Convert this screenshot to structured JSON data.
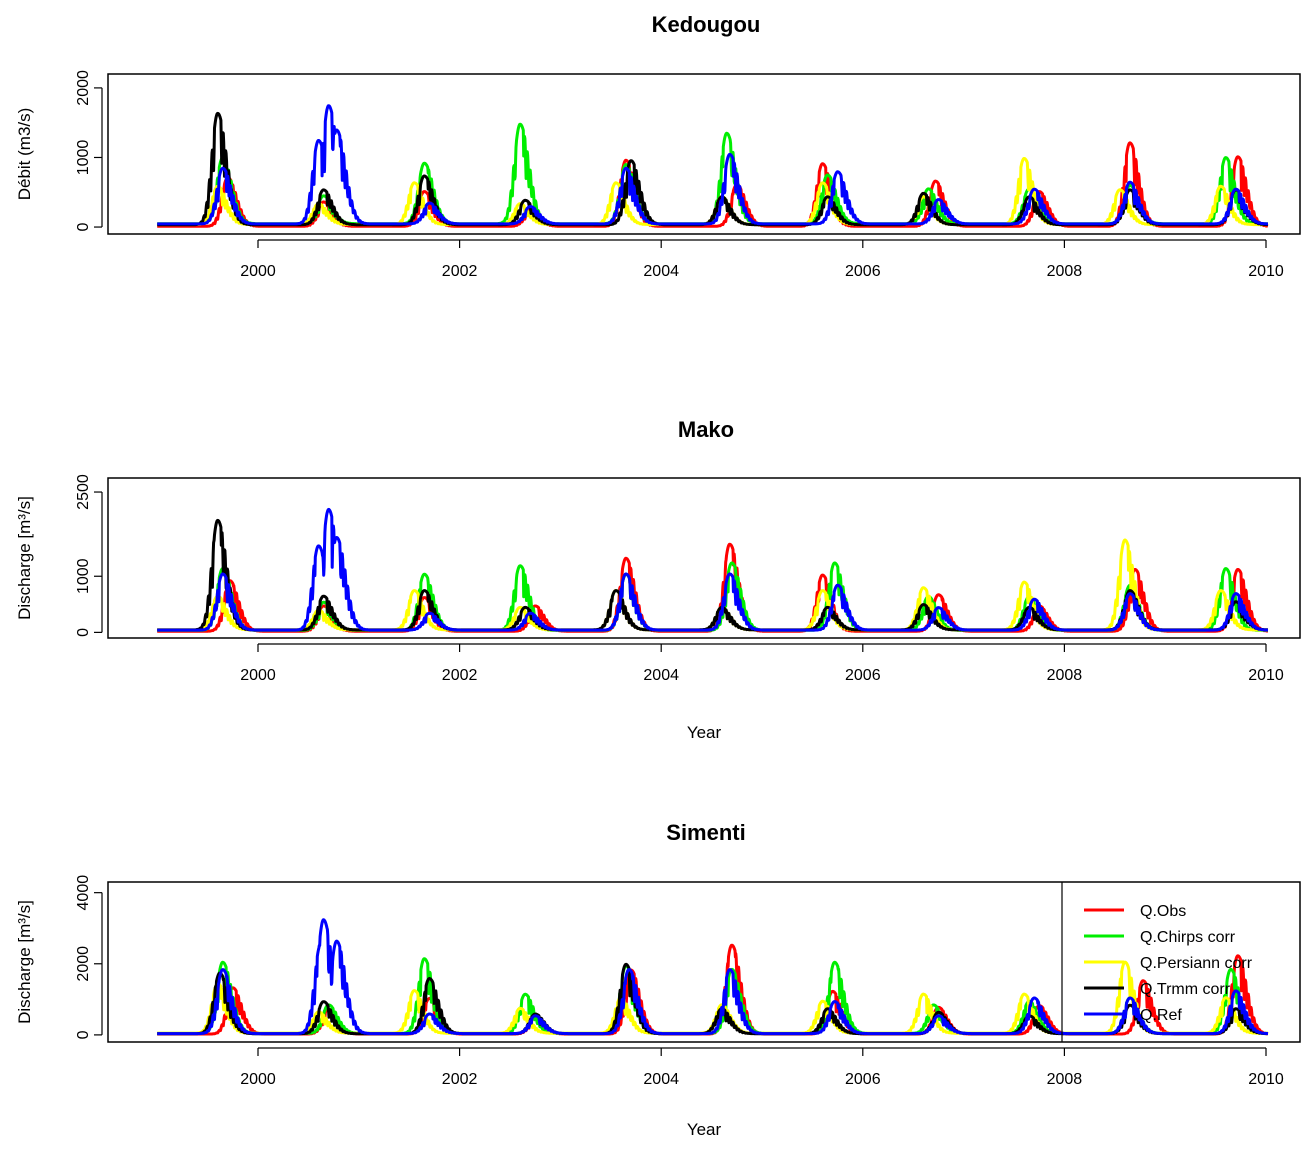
{
  "chart_data": [
    {
      "type": "line",
      "title": "Kedougou",
      "xlabel": "",
      "ylabel": "Débit (m3/s)",
      "xlim": [
        1999,
        2010.3
      ],
      "ylim": [
        -100,
        2200
      ],
      "x_ticks": [
        "2000",
        "2002",
        "2004",
        "2006",
        "2008",
        "2010"
      ],
      "y_ticks": [
        "0",
        "1000",
        "2000"
      ],
      "grid": false,
      "legend": null,
      "colors": {
        "Q.Obs": "#ff0000",
        "Q.Chirps corr": "#00ee00",
        "Q.Persiann corr": "#ffff00",
        "Q.Trmm corr": "#000000",
        "Q.Ref": "#0000ff"
      },
      "series": [
        {
          "key": "Q.Obs",
          "peaks": [
            [
              1999.7,
              700
            ],
            [
              2000.65,
              350
            ],
            [
              2001.65,
              500
            ],
            [
              2002.7,
              250
            ],
            [
              2003.65,
              950
            ],
            [
              2004.75,
              600
            ],
            [
              2005.6,
              900
            ],
            [
              2006.72,
              650
            ],
            [
              2007.75,
              500
            ],
            [
              2008.65,
              1200
            ],
            [
              2009.72,
              1000
            ]
          ]
        },
        {
          "key": "Q.Chirps corr",
          "peaks": [
            [
              1999.65,
              950
            ],
            [
              2000.65,
              400
            ],
            [
              2001.65,
              870
            ],
            [
              2002.6,
              1430
            ],
            [
              2003.65,
              850
            ],
            [
              2004.65,
              1300
            ],
            [
              2005.65,
              700
            ],
            [
              2006.65,
              500
            ],
            [
              2007.65,
              500
            ],
            [
              2008.65,
              550
            ],
            [
              2009.6,
              950
            ]
          ]
        },
        {
          "key": "Q.Persiann corr",
          "peaks": [
            [
              1999.6,
              550
            ],
            [
              2000.6,
              300
            ],
            [
              2001.55,
              600
            ],
            [
              2002.6,
              300
            ],
            [
              2003.55,
              600
            ],
            [
              2004.6,
              400
            ],
            [
              2005.6,
              600
            ],
            [
              2006.6,
              400
            ],
            [
              2007.6,
              950
            ],
            [
              2008.55,
              500
            ],
            [
              2009.55,
              550
            ]
          ]
        },
        {
          "key": "Q.Trmm corr",
          "peaks": [
            [
              1999.6,
              1600
            ],
            [
              2000.65,
              500
            ],
            [
              2001.65,
              700
            ],
            [
              2002.65,
              350
            ],
            [
              2003.7,
              920
            ],
            [
              2004.6,
              400
            ],
            [
              2005.65,
              400
            ],
            [
              2006.6,
              450
            ],
            [
              2007.65,
              400
            ],
            [
              2008.65,
              500
            ],
            [
              2009.7,
              500
            ]
          ]
        },
        {
          "key": "Q.Ref",
          "peaks": [
            [
              1999.65,
              800
            ],
            [
              2000.6,
              1200
            ],
            [
              2000.7,
              1700
            ],
            [
              2000.78,
              1350
            ],
            [
              2001.7,
              300
            ],
            [
              2002.7,
              250
            ],
            [
              2003.65,
              800
            ],
            [
              2004.68,
              1000
            ],
            [
              2005.75,
              750
            ],
            [
              2006.75,
              350
            ],
            [
              2007.7,
              500
            ],
            [
              2008.65,
              600
            ],
            [
              2009.7,
              500
            ]
          ]
        }
      ]
    },
    {
      "type": "line",
      "title": "Mako",
      "xlabel": "Year",
      "ylabel": "Discharge [m³/s]",
      "xlim": [
        1999,
        2010.3
      ],
      "ylim": [
        -100,
        2750
      ],
      "x_ticks": [
        "2000",
        "2002",
        "2004",
        "2006",
        "2008",
        "2010"
      ],
      "y_ticks": [
        "0",
        "1000",
        "2500"
      ],
      "grid": false,
      "legend": null,
      "colors": {
        "Q.Obs": "#ff0000",
        "Q.Chirps corr": "#00ee00",
        "Q.Persiann corr": "#ffff00",
        "Q.Trmm corr": "#000000",
        "Q.Ref": "#0000ff"
      },
      "series": [
        {
          "key": "Q.Obs",
          "peaks": [
            [
              1999.72,
              900
            ],
            [
              2000.65,
              450
            ],
            [
              2001.65,
              600
            ],
            [
              2002.75,
              450
            ],
            [
              2003.65,
              1300
            ],
            [
              2004.68,
              1550
            ],
            [
              2005.6,
              1000
            ],
            [
              2006.75,
              650
            ],
            [
              2007.75,
              450
            ],
            [
              2008.7,
              1100
            ],
            [
              2009.72,
              1100
            ]
          ]
        },
        {
          "key": "Q.Chirps corr",
          "peaks": [
            [
              1999.65,
              1100
            ],
            [
              2000.65,
              500
            ],
            [
              2001.65,
              1000
            ],
            [
              2002.6,
              1150
            ],
            [
              2003.65,
              1000
            ],
            [
              2004.7,
              1200
            ],
            [
              2005.72,
              1200
            ],
            [
              2006.65,
              600
            ],
            [
              2007.65,
              600
            ],
            [
              2008.65,
              800
            ],
            [
              2009.6,
              1100
            ]
          ]
        },
        {
          "key": "Q.Persiann corr",
          "peaks": [
            [
              1999.6,
              600
            ],
            [
              2000.6,
              350
            ],
            [
              2001.55,
              700
            ],
            [
              2002.6,
              400
            ],
            [
              2003.55,
              700
            ],
            [
              2004.6,
              400
            ],
            [
              2005.6,
              700
            ],
            [
              2006.6,
              750
            ],
            [
              2007.6,
              850
            ],
            [
              2008.6,
              1600
            ],
            [
              2009.55,
              700
            ]
          ]
        },
        {
          "key": "Q.Trmm corr",
          "peaks": [
            [
              1999.6,
              1950
            ],
            [
              2000.65,
              600
            ],
            [
              2001.65,
              700
            ],
            [
              2002.65,
              400
            ],
            [
              2003.55,
              700
            ],
            [
              2004.6,
              400
            ],
            [
              2005.65,
              400
            ],
            [
              2006.6,
              450
            ],
            [
              2007.65,
              400
            ],
            [
              2008.65,
              700
            ],
            [
              2009.7,
              500
            ]
          ]
        },
        {
          "key": "Q.Ref",
          "peaks": [
            [
              1999.65,
              1000
            ],
            [
              2000.6,
              1500
            ],
            [
              2000.7,
              2150
            ],
            [
              2000.78,
              1650
            ],
            [
              2001.7,
              300
            ],
            [
              2002.7,
              300
            ],
            [
              2003.65,
              1000
            ],
            [
              2004.68,
              1000
            ],
            [
              2005.75,
              800
            ],
            [
              2006.75,
              400
            ],
            [
              2007.7,
              550
            ],
            [
              2008.65,
              650
            ],
            [
              2009.7,
              650
            ]
          ]
        }
      ]
    },
    {
      "type": "line",
      "title": "Simenti",
      "xlabel": "Year",
      "ylabel": "Discharge [m³/s]",
      "xlim": [
        1999,
        2010.3
      ],
      "ylim": [
        -200,
        4300
      ],
      "x_ticks": [
        "2000",
        "2002",
        "2004",
        "2006",
        "2008",
        "2010"
      ],
      "y_ticks": [
        "0",
        "2000",
        "4000"
      ],
      "grid": false,
      "legend": "top-right",
      "colors": {
        "Q.Obs": "#ff0000",
        "Q.Chirps corr": "#00ee00",
        "Q.Persiann corr": "#ffff00",
        "Q.Trmm corr": "#000000",
        "Q.Ref": "#0000ff"
      },
      "series": [
        {
          "key": "Q.Obs",
          "name": "Q.Obs",
          "peaks": [
            [
              1999.75,
              1300
            ],
            [
              2000.7,
              700
            ],
            [
              2001.7,
              1000
            ],
            [
              2002.75,
              500
            ],
            [
              2003.7,
              1800
            ],
            [
              2004.7,
              2500
            ],
            [
              2005.7,
              1200
            ],
            [
              2006.75,
              750
            ],
            [
              2007.75,
              800
            ],
            [
              2008.78,
              1500
            ],
            [
              2009.72,
              2200
            ]
          ]
        },
        {
          "key": "Q.Chirps corr",
          "name": "Q.Chirps corr",
          "peaks": [
            [
              1999.65,
              2000
            ],
            [
              2000.7,
              800
            ],
            [
              2001.65,
              2100
            ],
            [
              2002.65,
              1100
            ],
            [
              2003.65,
              1900
            ],
            [
              2004.7,
              1800
            ],
            [
              2005.72,
              2000
            ],
            [
              2006.7,
              800
            ],
            [
              2007.65,
              900
            ],
            [
              2008.65,
              1000
            ],
            [
              2009.65,
              1800
            ]
          ]
        },
        {
          "key": "Q.Persiann corr",
          "name": " Q.Persiann corr",
          "peaks": [
            [
              1999.6,
              1400
            ],
            [
              2000.6,
              600
            ],
            [
              2001.55,
              1200
            ],
            [
              2002.6,
              700
            ],
            [
              2003.6,
              1000
            ],
            [
              2004.6,
              800
            ],
            [
              2005.6,
              900
            ],
            [
              2006.6,
              1100
            ],
            [
              2007.6,
              1100
            ],
            [
              2008.6,
              2000
            ],
            [
              2009.6,
              1000
            ]
          ]
        },
        {
          "key": "Q.Trmm corr",
          "name": "Q.Trmm corr",
          "peaks": [
            [
              1999.62,
              1700
            ],
            [
              2000.65,
              900
            ],
            [
              2001.7,
              1550
            ],
            [
              2002.75,
              550
            ],
            [
              2003.65,
              1950
            ],
            [
              2004.6,
              700
            ],
            [
              2005.65,
              700
            ],
            [
              2006.75,
              600
            ],
            [
              2007.65,
              500
            ],
            [
              2008.65,
              800
            ],
            [
              2009.7,
              700
            ]
          ]
        },
        {
          "key": "Q.Ref",
          "name": "Q.Ref",
          "peaks": [
            [
              1999.65,
              1800
            ],
            [
              2000.62,
              2500
            ],
            [
              2000.65,
              3200
            ],
            [
              2000.78,
              2600
            ],
            [
              2001.7,
              550
            ],
            [
              2002.75,
              500
            ],
            [
              2003.68,
              1800
            ],
            [
              2004.68,
              1800
            ],
            [
              2005.72,
              900
            ],
            [
              2006.75,
              500
            ],
            [
              2007.7,
              1000
            ],
            [
              2008.65,
              1000
            ],
            [
              2009.7,
              1200
            ]
          ]
        }
      ]
    }
  ]
}
